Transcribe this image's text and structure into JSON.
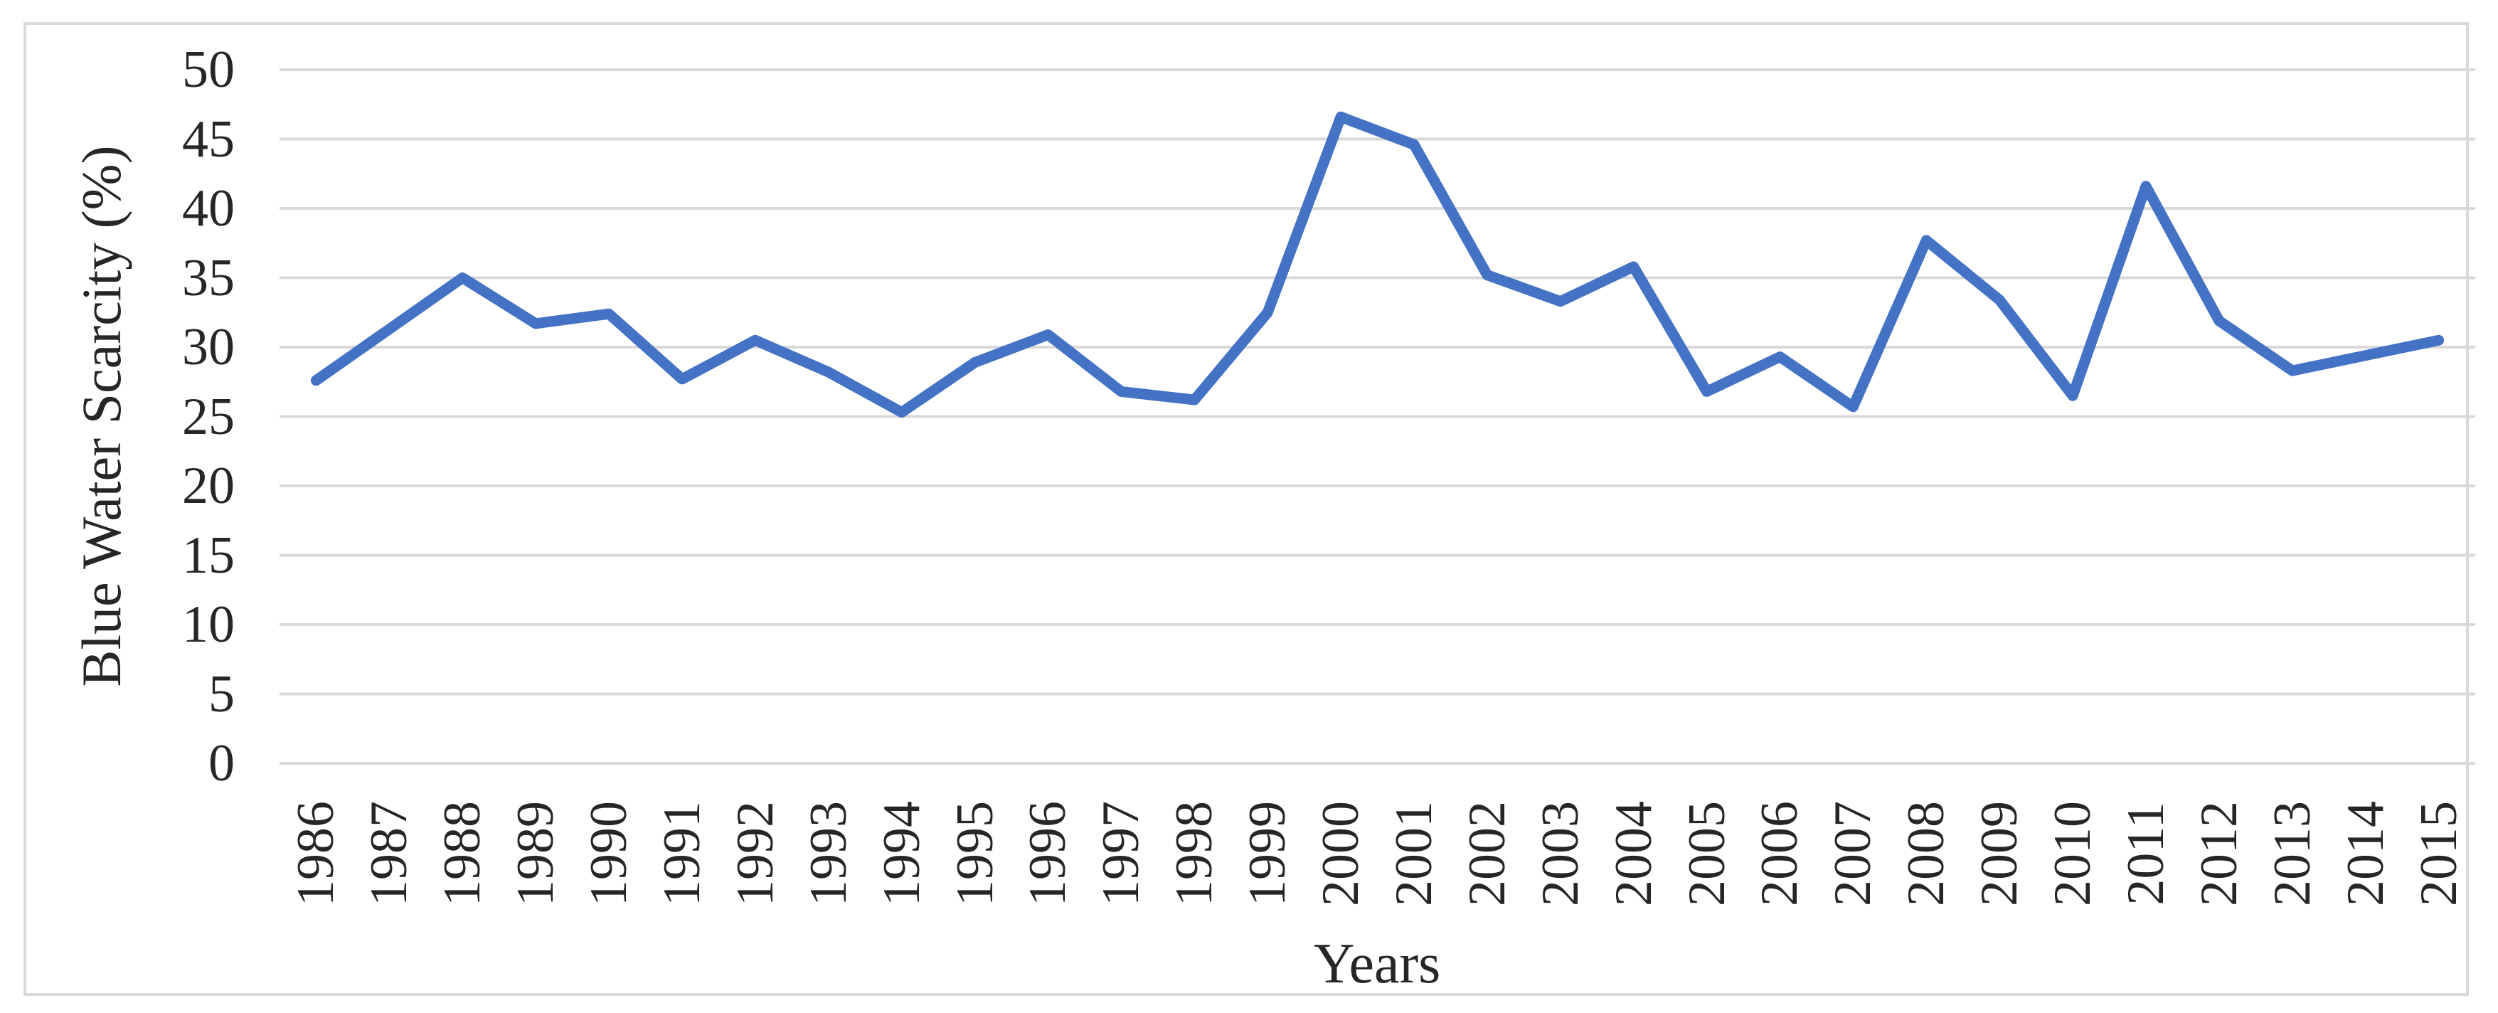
{
  "figure": {
    "background_color": "#FFFFFF",
    "frame_color": "#D9D9D9"
  },
  "chart_data": {
    "type": "line",
    "title": "",
    "xlabel": "Years",
    "ylabel": "Blue Water Scarcity (%)",
    "categories": [
      1986,
      1987,
      1988,
      1989,
      1990,
      1991,
      1992,
      1993,
      1994,
      1995,
      1996,
      1997,
      1998,
      1999,
      2000,
      2001,
      2002,
      2003,
      2004,
      2005,
      2006,
      2007,
      2008,
      2009,
      2010,
      2011,
      2012,
      2013,
      2014,
      2015
    ],
    "series": [
      {
        "name": "Blue Water Scarcity (%)",
        "color": "#4472C4",
        "values": [
          27.6,
          31.3,
          35.0,
          31.7,
          32.4,
          27.7,
          30.5,
          28.2,
          25.3,
          28.9,
          30.9,
          26.8,
          26.2,
          32.5,
          46.6,
          44.6,
          35.2,
          33.3,
          35.8,
          26.8,
          29.3,
          25.7,
          37.7,
          33.4,
          26.5,
          41.6,
          31.9,
          28.3,
          29.4,
          30.5
        ]
      }
    ],
    "ylim": [
      0,
      50
    ],
    "yticks": [
      0,
      5,
      10,
      15,
      20,
      25,
      30,
      35,
      40,
      45,
      50
    ],
    "grid": "horizontal",
    "gridline_color": "#D9D9D9",
    "legend_position": "none",
    "x_tick_label_rotation": -90
  }
}
